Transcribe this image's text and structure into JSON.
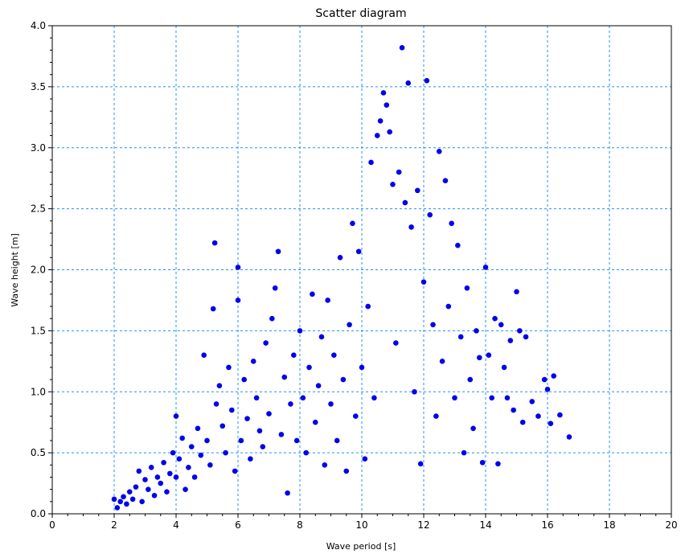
{
  "chart_data": {
    "type": "scatter",
    "title": "Scatter diagram",
    "xlabel": "Wave period [s]",
    "ylabel": "Wave height [m]",
    "xlim": [
      0,
      20
    ],
    "ylim": [
      0.0,
      4.0
    ],
    "x_ticks": [
      "0",
      "2",
      "4",
      "6",
      "8",
      "10",
      "12",
      "14",
      "16",
      "18",
      "20"
    ],
    "y_ticks": [
      "0.0",
      "0.5",
      "1.0",
      "1.5",
      "2.0",
      "2.5",
      "3.0",
      "3.5",
      "4.0"
    ],
    "grid": true,
    "marker_color": "#0000ee",
    "grid_color": "#1e90ff",
    "series": [
      {
        "points": [
          [
            2.0,
            0.12
          ],
          [
            2.1,
            0.05
          ],
          [
            2.2,
            0.1
          ],
          [
            2.3,
            0.14
          ],
          [
            2.4,
            0.08
          ],
          [
            2.5,
            0.18
          ],
          [
            2.6,
            0.12
          ],
          [
            2.7,
            0.22
          ],
          [
            2.8,
            0.35
          ],
          [
            2.9,
            0.1
          ],
          [
            3.0,
            0.28
          ],
          [
            3.1,
            0.2
          ],
          [
            3.2,
            0.38
          ],
          [
            3.3,
            0.15
          ],
          [
            3.4,
            0.3
          ],
          [
            3.5,
            0.25
          ],
          [
            3.6,
            0.42
          ],
          [
            3.7,
            0.18
          ],
          [
            3.8,
            0.33
          ],
          [
            3.9,
            0.5
          ],
          [
            4.0,
            0.3
          ],
          [
            4.0,
            0.8
          ],
          [
            4.1,
            0.45
          ],
          [
            4.2,
            0.62
          ],
          [
            4.3,
            0.2
          ],
          [
            4.4,
            0.38
          ],
          [
            4.5,
            0.55
          ],
          [
            4.6,
            0.3
          ],
          [
            4.7,
            0.7
          ],
          [
            4.8,
            0.48
          ],
          [
            4.9,
            1.3
          ],
          [
            5.0,
            0.6
          ],
          [
            5.1,
            0.4
          ],
          [
            5.2,
            1.68
          ],
          [
            5.25,
            2.22
          ],
          [
            5.3,
            0.9
          ],
          [
            5.4,
            1.05
          ],
          [
            5.5,
            0.72
          ],
          [
            5.6,
            0.5
          ],
          [
            5.7,
            1.2
          ],
          [
            5.8,
            0.85
          ],
          [
            5.9,
            0.35
          ],
          [
            6.0,
            2.02
          ],
          [
            6.0,
            1.75
          ],
          [
            6.1,
            0.6
          ],
          [
            6.2,
            1.1
          ],
          [
            6.3,
            0.78
          ],
          [
            6.4,
            0.45
          ],
          [
            6.5,
            1.25
          ],
          [
            6.6,
            0.95
          ],
          [
            6.7,
            0.68
          ],
          [
            6.8,
            0.55
          ],
          [
            6.9,
            1.4
          ],
          [
            7.0,
            0.82
          ],
          [
            7.1,
            1.6
          ],
          [
            7.2,
            1.85
          ],
          [
            7.3,
            2.15
          ],
          [
            7.4,
            0.65
          ],
          [
            7.5,
            1.12
          ],
          [
            7.6,
            0.17
          ],
          [
            7.7,
            0.9
          ],
          [
            7.8,
            1.3
          ],
          [
            7.9,
            0.6
          ],
          [
            8.0,
            1.5
          ],
          [
            8.1,
            0.95
          ],
          [
            8.2,
            0.5
          ],
          [
            8.3,
            1.2
          ],
          [
            8.4,
            1.8
          ],
          [
            8.5,
            0.75
          ],
          [
            8.6,
            1.05
          ],
          [
            8.7,
            1.45
          ],
          [
            8.8,
            0.4
          ],
          [
            8.9,
            1.75
          ],
          [
            9.0,
            0.9
          ],
          [
            9.1,
            1.3
          ],
          [
            9.2,
            0.6
          ],
          [
            9.3,
            2.1
          ],
          [
            9.4,
            1.1
          ],
          [
            9.5,
            0.35
          ],
          [
            9.6,
            1.55
          ],
          [
            9.7,
            2.38
          ],
          [
            9.8,
            0.8
          ],
          [
            9.9,
            2.15
          ],
          [
            10.0,
            1.2
          ],
          [
            10.1,
            0.45
          ],
          [
            10.2,
            1.7
          ],
          [
            10.3,
            2.88
          ],
          [
            10.4,
            0.95
          ],
          [
            10.5,
            3.1
          ],
          [
            10.6,
            3.22
          ],
          [
            10.7,
            3.45
          ],
          [
            10.8,
            3.35
          ],
          [
            10.9,
            3.13
          ],
          [
            11.0,
            2.7
          ],
          [
            11.1,
            1.4
          ],
          [
            11.2,
            2.8
          ],
          [
            11.3,
            3.82
          ],
          [
            11.4,
            2.55
          ],
          [
            11.5,
            3.53
          ],
          [
            11.6,
            2.35
          ],
          [
            11.7,
            1.0
          ],
          [
            11.8,
            2.65
          ],
          [
            11.9,
            0.41
          ],
          [
            12.0,
            1.9
          ],
          [
            12.1,
            3.55
          ],
          [
            12.2,
            2.45
          ],
          [
            12.3,
            1.55
          ],
          [
            12.4,
            0.8
          ],
          [
            12.5,
            2.97
          ],
          [
            12.6,
            1.25
          ],
          [
            12.7,
            2.73
          ],
          [
            12.8,
            1.7
          ],
          [
            12.9,
            2.38
          ],
          [
            13.0,
            0.95
          ],
          [
            13.1,
            2.2
          ],
          [
            13.2,
            1.45
          ],
          [
            13.3,
            0.5
          ],
          [
            13.4,
            1.85
          ],
          [
            13.5,
            1.1
          ],
          [
            13.6,
            0.7
          ],
          [
            13.7,
            1.5
          ],
          [
            13.8,
            1.28
          ],
          [
            13.9,
            0.42
          ],
          [
            14.0,
            2.02
          ],
          [
            14.1,
            1.3
          ],
          [
            14.2,
            0.95
          ],
          [
            14.3,
            1.6
          ],
          [
            14.4,
            0.41
          ],
          [
            14.5,
            1.55
          ],
          [
            14.6,
            1.2
          ],
          [
            14.7,
            0.95
          ],
          [
            14.8,
            1.42
          ],
          [
            14.9,
            0.85
          ],
          [
            15.0,
            1.82
          ],
          [
            15.1,
            1.5
          ],
          [
            15.2,
            0.75
          ],
          [
            15.3,
            1.45
          ],
          [
            15.5,
            0.92
          ],
          [
            15.7,
            0.8
          ],
          [
            15.9,
            1.1
          ],
          [
            16.0,
            1.02
          ],
          [
            16.1,
            0.74
          ],
          [
            16.2,
            1.13
          ],
          [
            16.4,
            0.81
          ],
          [
            16.7,
            0.63
          ]
        ]
      }
    ]
  }
}
